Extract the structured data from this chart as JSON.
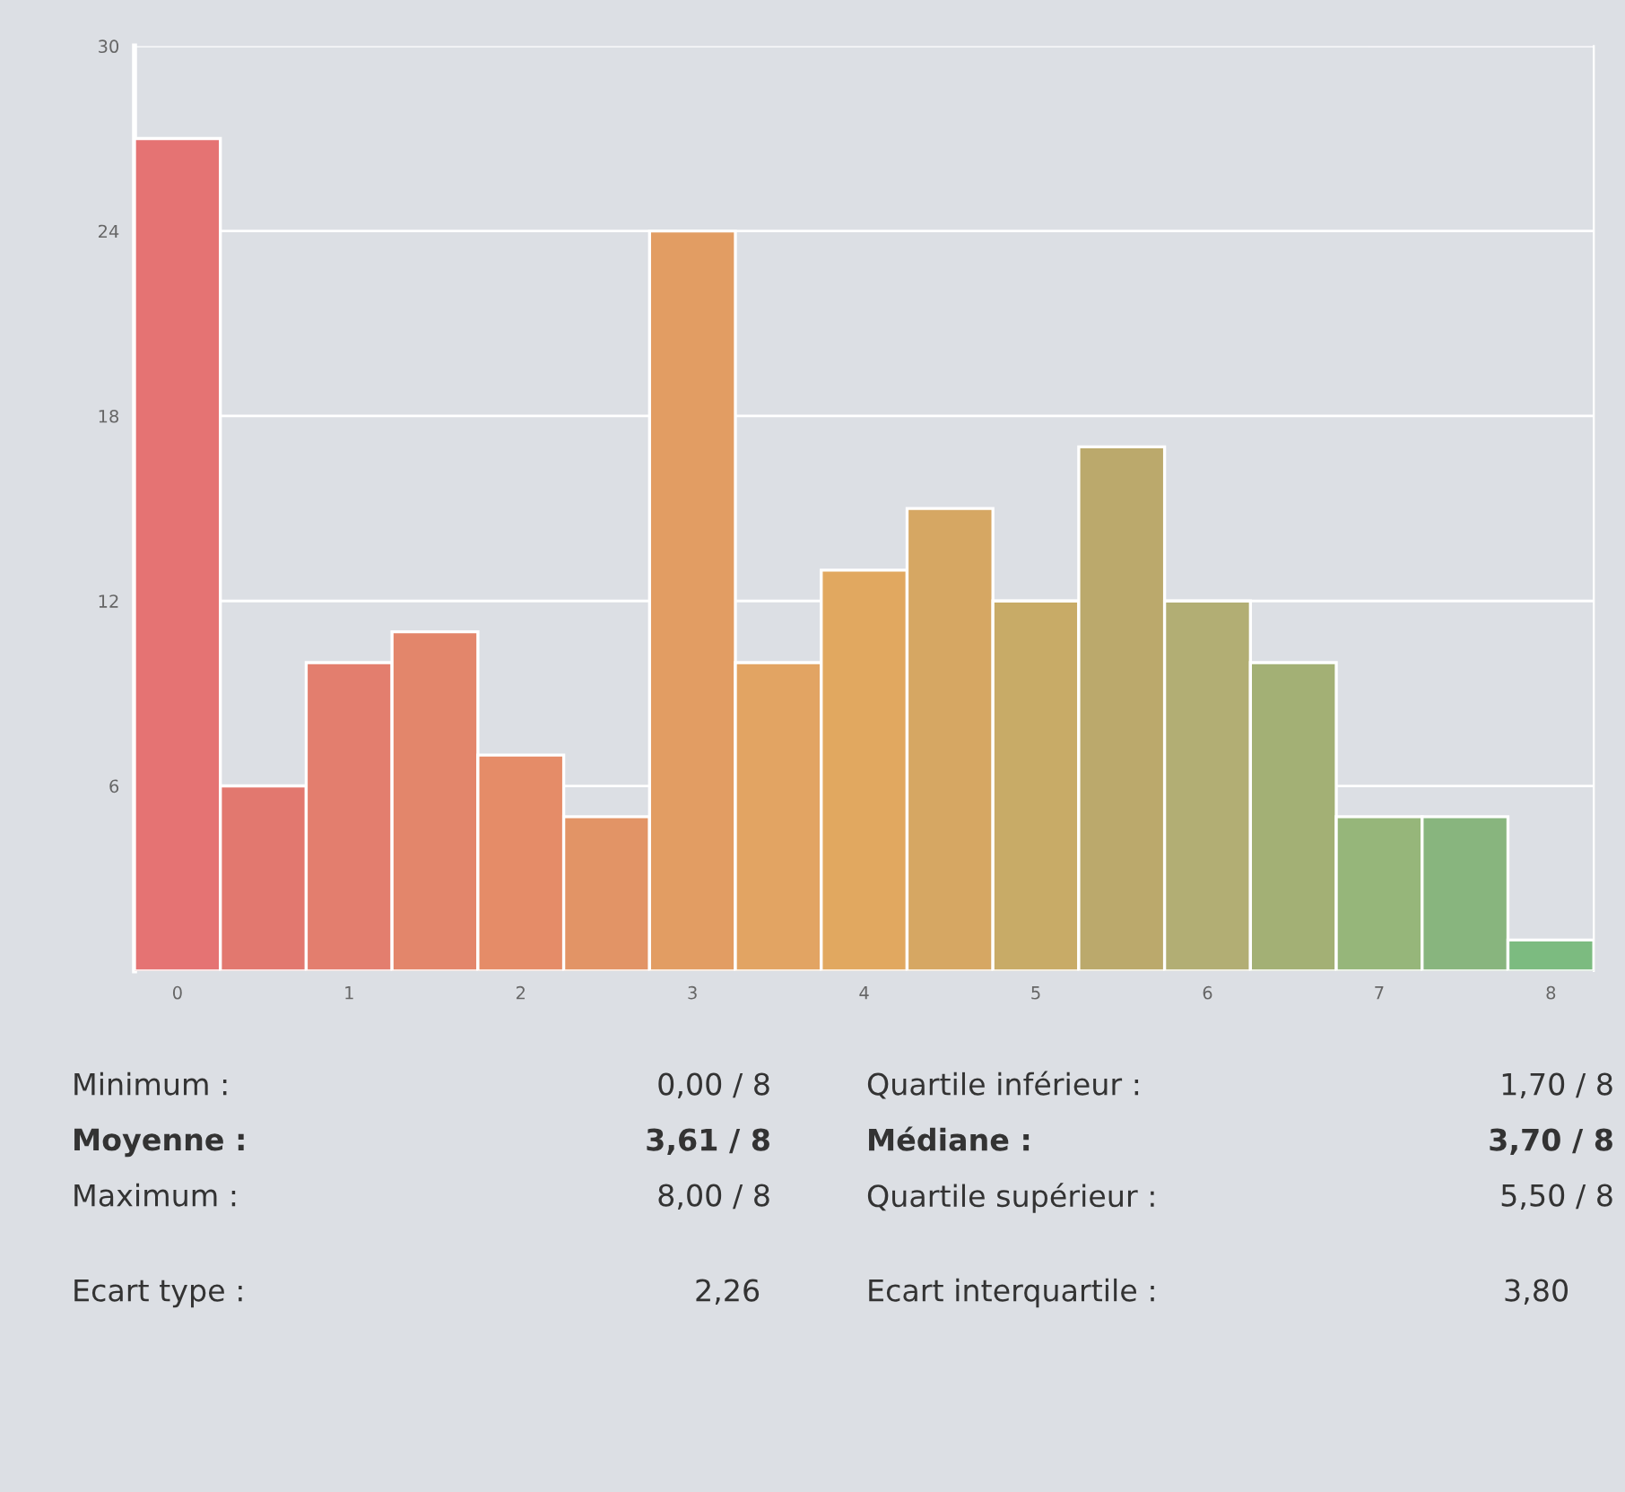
{
  "chart_data": {
    "type": "histogram",
    "bins": [
      -0.25,
      0.25,
      0.75,
      1.25,
      1.75,
      2.25,
      2.75,
      3.25,
      3.75,
      4.25,
      4.75,
      5.25,
      5.75,
      6.25,
      6.75,
      7.25,
      7.75,
      8.25
    ],
    "values": [
      27,
      6,
      10,
      11,
      7,
      5,
      24,
      10,
      13,
      15,
      12,
      17,
      12,
      10,
      5,
      5,
      1
    ],
    "colors": [
      "#e57373",
      "#e2786f",
      "#e37e6e",
      "#e3866b",
      "#e58c68",
      "#e29466",
      "#e29d63",
      "#e2a463",
      "#e1a860",
      "#d6a763",
      "#c8ab67",
      "#bba96c",
      "#b2ae74",
      "#a3b075",
      "#96b67a",
      "#88b57e",
      "#7cbb80"
    ],
    "xlim": [
      -0.25,
      8.25
    ],
    "xticks": [
      0,
      1,
      2,
      3,
      4,
      5,
      6,
      7,
      8
    ],
    "ylim": [
      0,
      30
    ],
    "yticks": [
      6,
      12,
      18,
      24,
      30
    ],
    "grid": "y",
    "annotations": [
      "Minimum :",
      "0,00 / 8",
      "Quartile inférieur :",
      "1,70 / 8",
      "Moyenne :",
      "3,61 / 8",
      "Médiane :",
      "3,70 / 8",
      "Maximum :",
      "8,00 / 8",
      "Quartile supérieur :",
      "5,50 / 8",
      "Ecart type :",
      "2,26",
      "Ecart interquartile :",
      "3,80"
    ]
  }
}
